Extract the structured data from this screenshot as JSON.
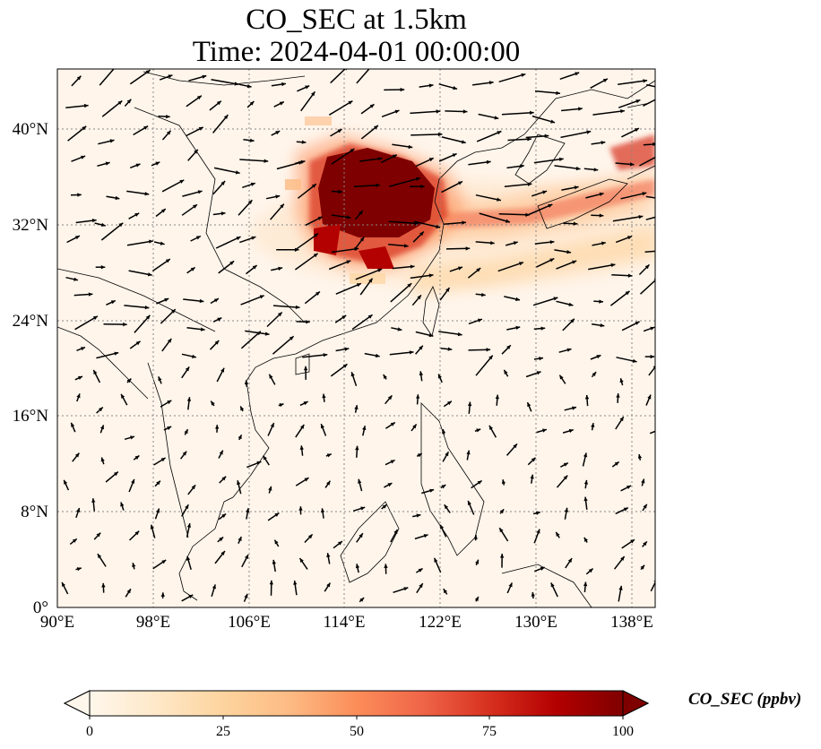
{
  "title": {
    "line1": "CO_SEC at 1.5km",
    "line2": "Time: 2024-04-01 00:00:00"
  },
  "map": {
    "projection": "plate-carree",
    "lon_range": [
      90,
      140
    ],
    "lat_range": [
      0,
      45
    ],
    "lon_ticks": [
      "90°E",
      "98°E",
      "106°E",
      "114°E",
      "122°E",
      "130°E",
      "138°E"
    ],
    "lat_ticks": [
      "0°",
      "8°N",
      "16°N",
      "24°N",
      "32°N",
      "40°N"
    ],
    "gridlines": "dotted",
    "background_color": "#fff5eb",
    "plume_color_max": "#7f0000",
    "vectors": "wind-arrows"
  },
  "colorbar": {
    "label": "CO_SEC (ppbv)",
    "ticks": [
      "0",
      "25",
      "50",
      "75",
      "100"
    ],
    "range": [
      0,
      100
    ],
    "extend": "both",
    "colormap": "OrRd",
    "colors": [
      "#fff7ec",
      "#fee8c8",
      "#fdd49e",
      "#fdbb84",
      "#fc8d59",
      "#ef6548",
      "#d7301f",
      "#b30000",
      "#7f0000"
    ]
  }
}
